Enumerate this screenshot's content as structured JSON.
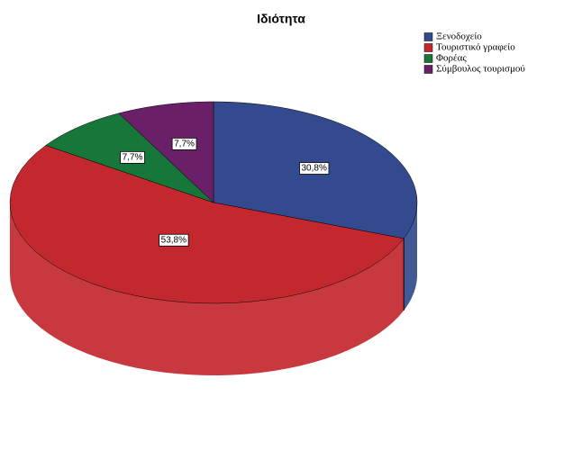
{
  "chart_data": {
    "type": "pie",
    "title": "Ιδιότητα",
    "categories": [
      "Ξενοδοχείο",
      "Τουριστικό γραφείο",
      "Φορέας",
      "Σύμβουλος τουρισμού"
    ],
    "values": [
      30.8,
      53.8,
      7.7,
      7.7
    ],
    "value_labels": [
      "30,8%",
      "53,8%",
      "7,7%",
      "7,7%"
    ],
    "colors": [
      "#334b8e",
      "#c4282f",
      "#17763a",
      "#6a2068"
    ],
    "legend": "top-right"
  }
}
